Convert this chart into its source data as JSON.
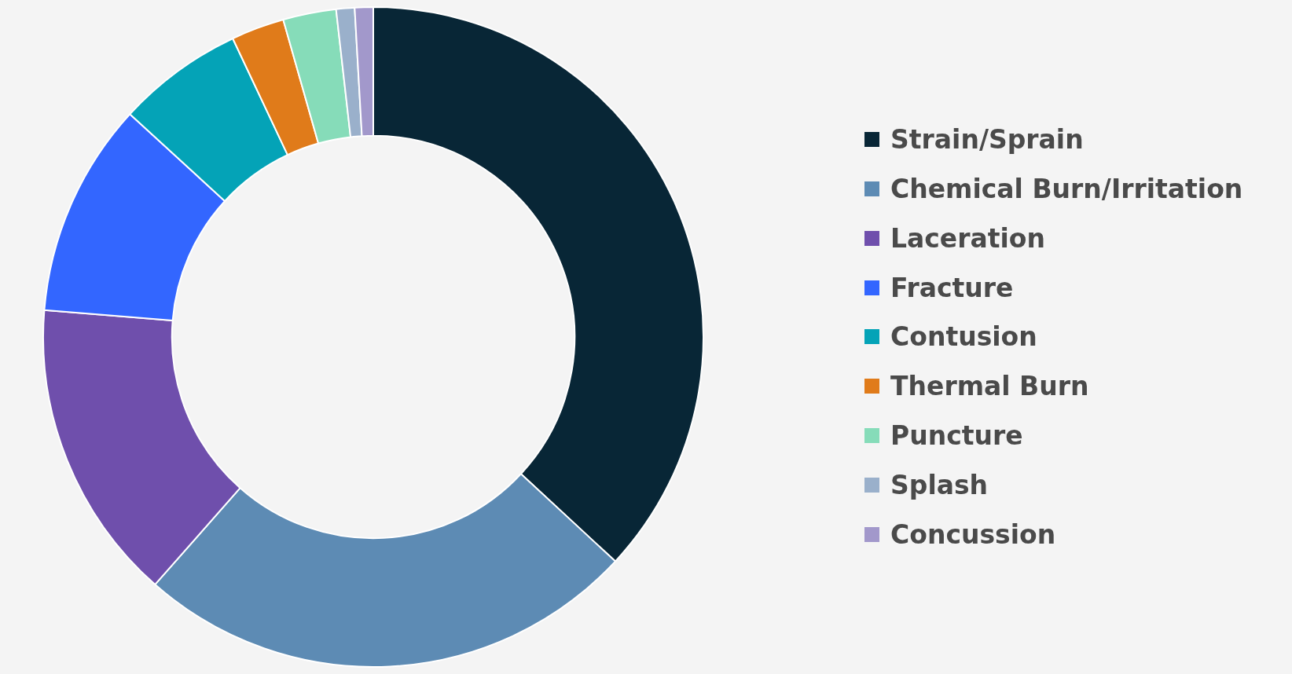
{
  "chart_data": {
    "type": "donut",
    "categories": [
      "Strain/Sprain",
      "Chemical Burn/Irritation",
      "Laceration",
      "Fracture",
      "Contusion",
      "Thermal Burn",
      "Puncture",
      "Splash",
      "Concussion"
    ],
    "values": [
      36.9,
      24.6,
      14.8,
      10.5,
      6.2,
      2.6,
      2.6,
      0.9,
      0.9
    ],
    "colors": [
      "#082636",
      "#5d8bb4",
      "#6f4fac",
      "#3366ff",
      "#04a3b7",
      "#e07b1a",
      "#86dcb9",
      "#9ab0cb",
      "#a298cb"
    ],
    "legend": "right"
  }
}
